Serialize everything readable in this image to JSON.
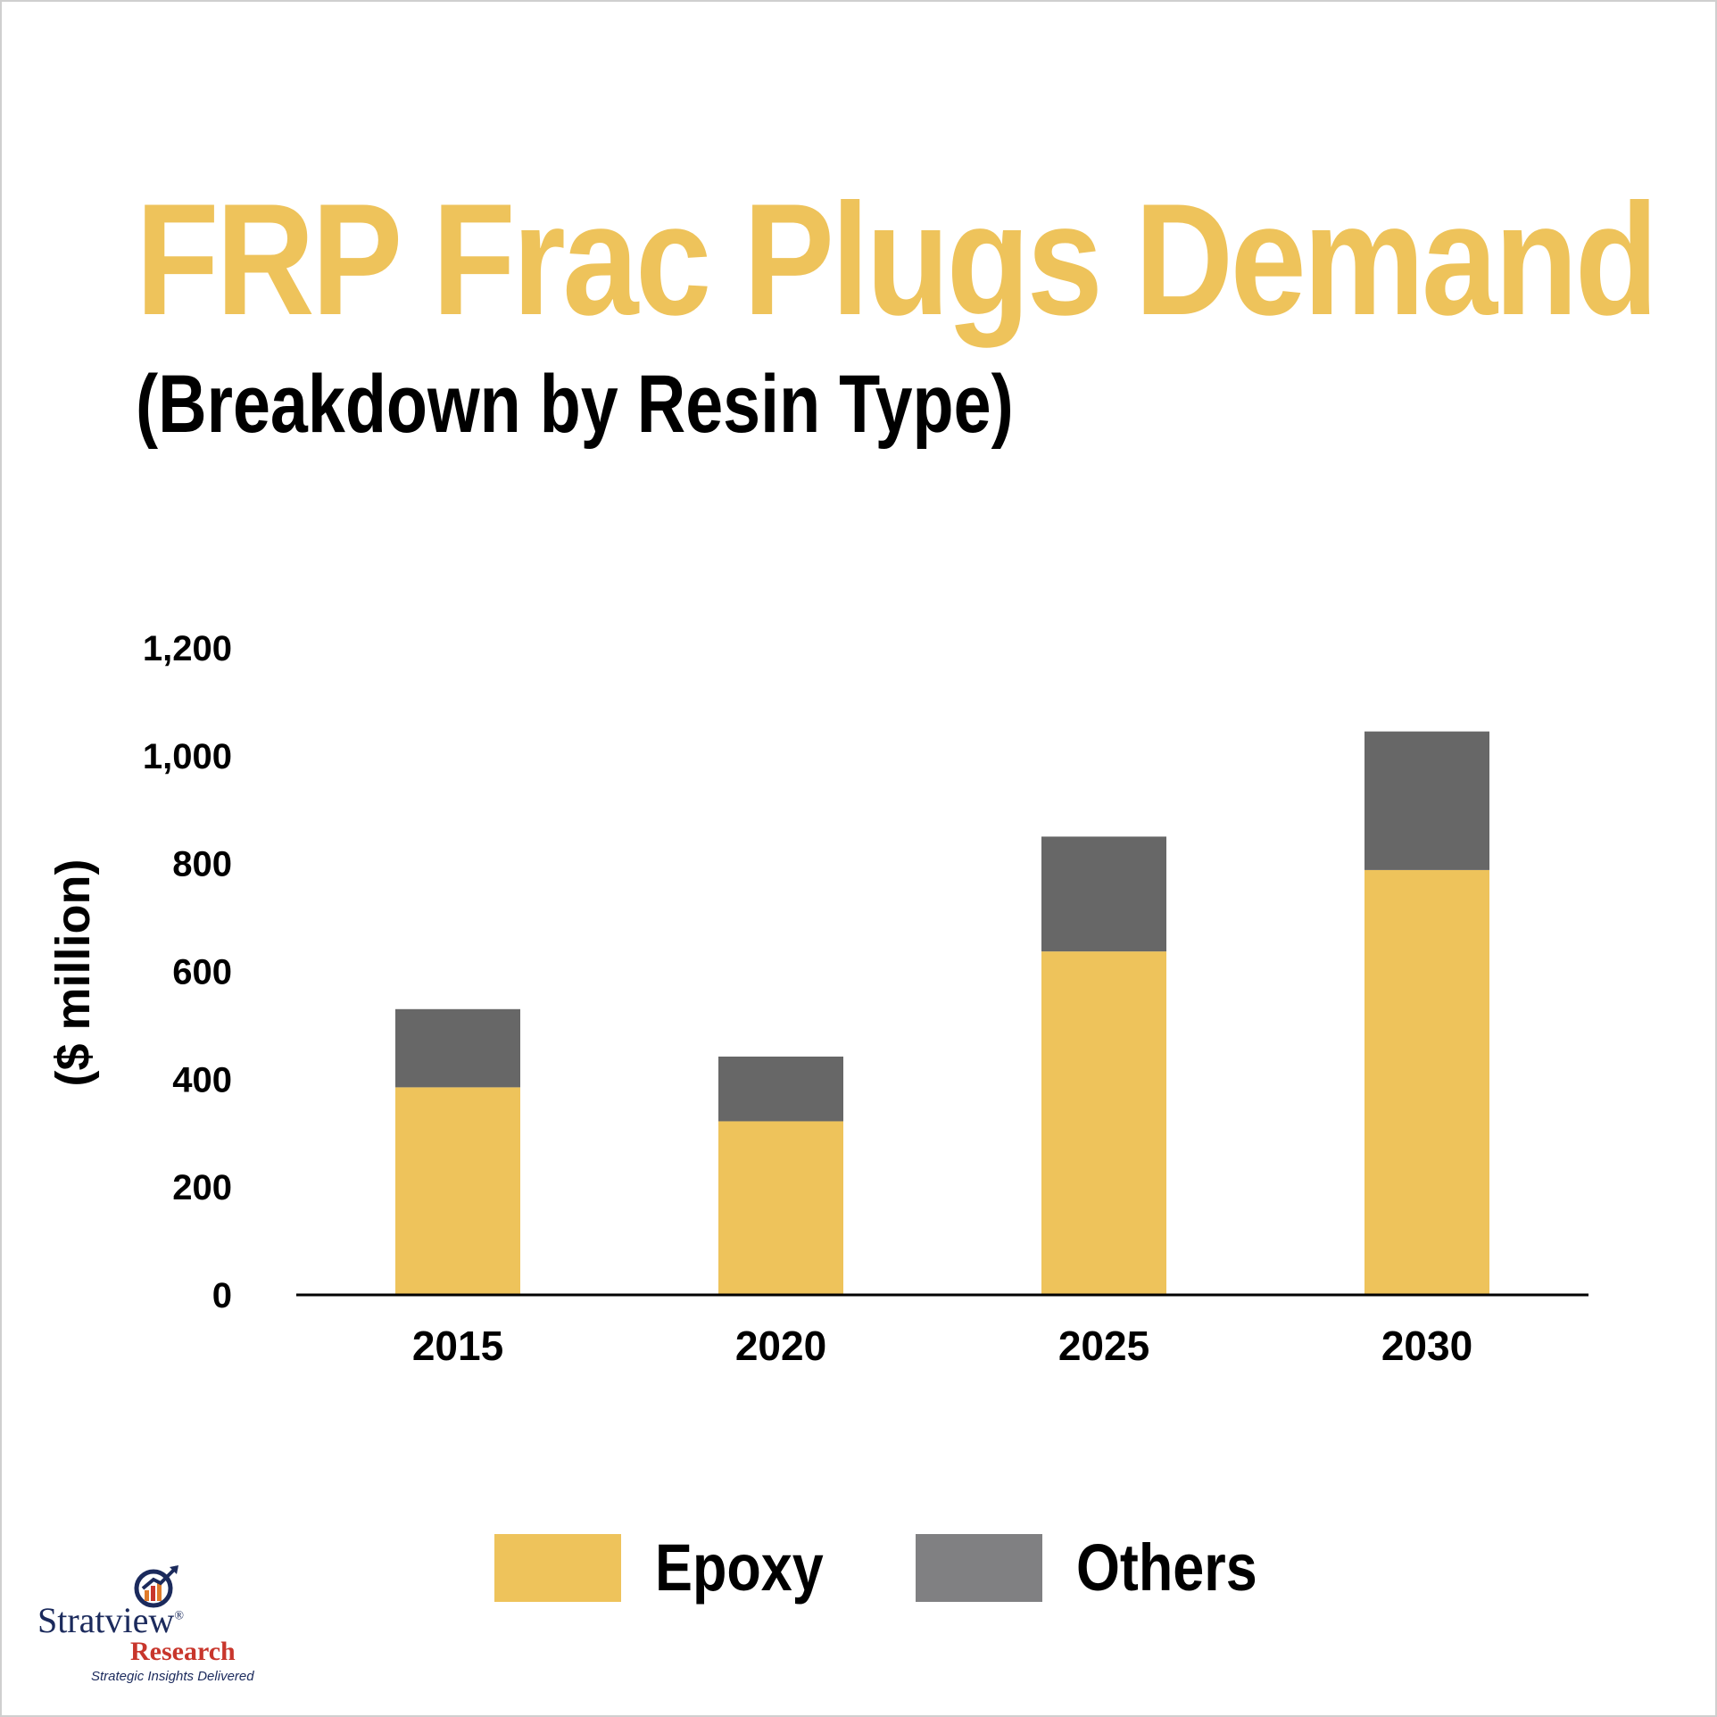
{
  "colors": {
    "epoxy": "#eec35b",
    "others": "#676767",
    "others_legend": "#808082",
    "axis": "#000000",
    "title": "#eec35b"
  },
  "chart_data": {
    "type": "bar",
    "stacked": true,
    "title": "FRP Frac Plugs Demand",
    "subtitle": "(Breakdown by Resin Type)",
    "ylabel": "($ million)",
    "xlabel": "",
    "categories": [
      "2015",
      "2020",
      "2025",
      "2030"
    ],
    "series": [
      {
        "name": "Epoxy",
        "values": [
          385,
          322,
          637,
          788
        ]
      },
      {
        "name": "Others",
        "values": [
          145,
          120,
          213,
          257
        ]
      }
    ],
    "ylim": [
      0,
      1200
    ],
    "yticks": [
      "0",
      "200",
      "400",
      "600",
      "800",
      "1,000",
      "1,200"
    ],
    "grid": false,
    "legend_position": "bottom"
  },
  "logo": {
    "wordmark": "Stratview",
    "registered": "®",
    "sub": "Research",
    "tagline": "Strategic Insights Delivered",
    "icon": "magnifier-chart-icon"
  }
}
